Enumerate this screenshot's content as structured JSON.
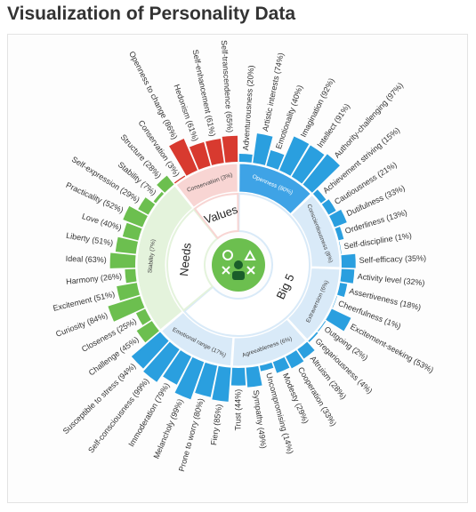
{
  "chart_data": {
    "type": "sunburst",
    "title": "Visualization of Personality Data",
    "groups": [
      {
        "name": "Big 5",
        "color": "#2a9fdf",
        "ring_color": "#d9eaf8",
        "subgroups": [
          {
            "label": "Openness (80%)",
            "color": "#3ea3e6",
            "labels": [
              "Adventurousness (20%)",
              "Artistic interests (74%)",
              "Emotionality (40%)",
              "Imagination (92%)",
              "Intellect (91%)",
              "Authority-challenging (97%)"
            ],
            "values": [
              20,
              74,
              40,
              92,
              91,
              97
            ]
          },
          {
            "label": "Conscientiousness (8%)",
            "labels": [
              "Achievement striving (15%)",
              "Cautiousness (21%)",
              "Dutifulness (33%)",
              "Orderliness (13%)",
              "Self-discipline (1%)",
              "Self-efficacy (35%)"
            ],
            "values": [
              15,
              21,
              33,
              13,
              1,
              35
            ]
          },
          {
            "label": "Extraversion (6%)",
            "labels": [
              "Activity level (32%)",
              "Assertiveness (18%)",
              "Cheerfulness (1%)",
              "Excitement-seeking (53%)",
              "Outgoing (2%)",
              "Gregariousness (4%)"
            ],
            "values": [
              32,
              18,
              1,
              53,
              2,
              4
            ]
          },
          {
            "label": "Agreeableness (6%)",
            "labels": [
              "Altruism (28%)",
              "Cooperation (33%)",
              "Modesty (29%)",
              "Uncompromising (14%)",
              "Sympathy (49%)",
              "Trust (44%)"
            ],
            "values": [
              28,
              33,
              29,
              14,
              49,
              44
            ]
          },
          {
            "label": "Emotional range (17%)",
            "labels": [
              "Fiery (85%)",
              "Prone to worry (80%)",
              "Melancholy (99%)",
              "Immoderation (79%)",
              "Self-consciousness (99%)",
              "Susceptible to stress (94%)"
            ],
            "values": [
              85,
              80,
              99,
              79,
              99,
              94
            ]
          }
        ]
      },
      {
        "name": "Needs",
        "color": "#6cbf4f",
        "ring_color": "#e4f3dc",
        "subgroups": [
          {
            "label": "Stability (7%)",
            "labels": [
              "Challenge (45%)",
              "Closeness (25%)",
              "Curiosity (84%)",
              "Excitement (51%)",
              "Harmony (26%)",
              "Ideal (63%)",
              "Liberty (51%)",
              "Love (40%)",
              "Practicality (52%)",
              "Self-expression (29%)",
              "Stability (7%)",
              "Structure (28%)"
            ],
            "values": [
              45,
              25,
              84,
              51,
              26,
              63,
              51,
              40,
              52,
              29,
              7,
              28
            ]
          }
        ]
      },
      {
        "name": "Values",
        "color": "#d83a2f",
        "ring_color": "#f8d5d3",
        "subgroups": [
          {
            "label": "Conservation (3%)",
            "labels": [
              "Conservation (3%)",
              "Openness to change (86%)",
              "Hedonism (61%)",
              "Self-enhancement (61%)",
              "Self-transcendence (65%)"
            ],
            "values": [
              3,
              86,
              61,
              61,
              65
            ]
          }
        ]
      }
    ]
  }
}
